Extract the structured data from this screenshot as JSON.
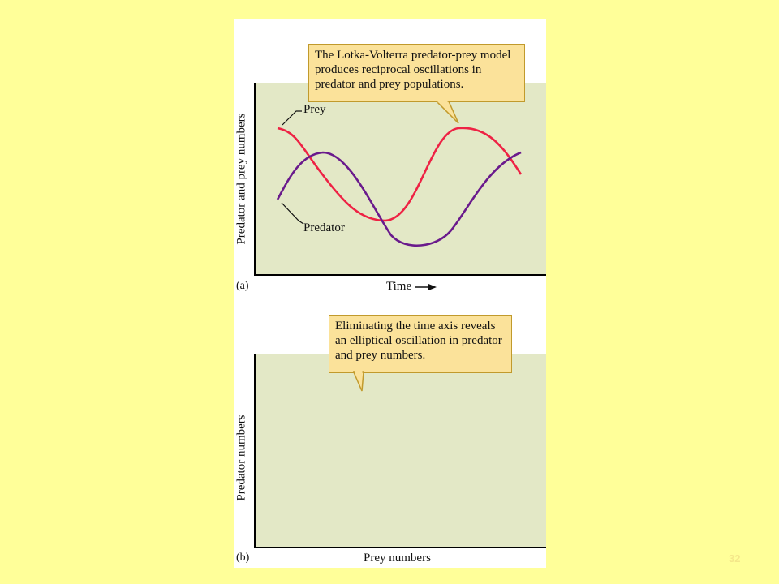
{
  "panel_a": {
    "callout": "The Lotka-Volterra predator-prey model produces reciprocal oscillations in predator and prey populations.",
    "prey_label": "Prey",
    "predator_label": "Predator",
    "y_axis_label": "Predator and prey numbers",
    "x_axis_label": "Time",
    "panel_label": "(a)",
    "prey_color": "#ee2244",
    "predator_color": "#6a1a8c"
  },
  "panel_b": {
    "callout": "Eliminating the time axis reveals an elliptical oscillation in predator and prey numbers.",
    "y_axis_label": "Predator numbers",
    "x_axis_label": "Prey numbers",
    "panel_label": "(b)",
    "cycle_color": "#ee1c24"
  },
  "slide_number": "32"
}
